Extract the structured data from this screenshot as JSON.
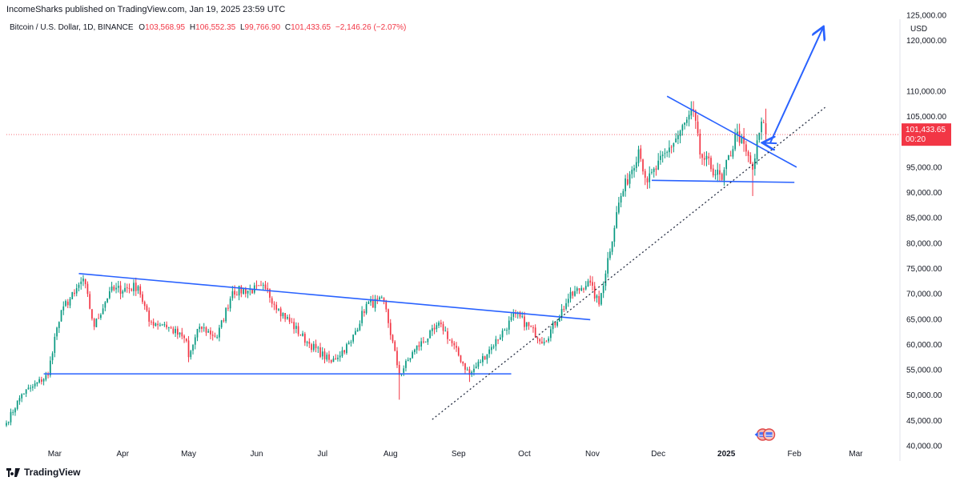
{
  "header": {
    "publisher": "IncomeSharks published on TradingView.com, Jan 19, 2025 23:59 UTC",
    "symbol": "Bitcoin / U.S. Dollar, 1D, BINANCE",
    "o_label": "O",
    "o_value": "103,568.95",
    "h_label": "H",
    "h_value": "106,552.35",
    "l_label": "L",
    "l_value": "99,766.90",
    "c_label": "C",
    "c_value": "101,433.65",
    "change": "−2,146.26 (−2.07%)"
  },
  "price_axis": {
    "currency": "USD",
    "ticks": [
      {
        "value": 125000,
        "label": "125,000.00"
      },
      {
        "value": 120000,
        "label": "120,000.00"
      },
      {
        "value": 110000,
        "label": "110,000.00"
      },
      {
        "value": 105000,
        "label": "105,000.00"
      },
      {
        "value": 95000,
        "label": "95,000.00"
      },
      {
        "value": 90000,
        "label": "90,000.00"
      },
      {
        "value": 85000,
        "label": "85,000.00"
      },
      {
        "value": 80000,
        "label": "80,000.00"
      },
      {
        "value": 75000,
        "label": "75,000.00"
      },
      {
        "value": 70000,
        "label": "70,000.00"
      },
      {
        "value": 65000,
        "label": "65,000.00"
      },
      {
        "value": 60000,
        "label": "60,000.00"
      },
      {
        "value": 55000,
        "label": "55,000.00"
      },
      {
        "value": 50000,
        "label": "50,000.00"
      },
      {
        "value": 45000,
        "label": "45,000.00"
      },
      {
        "value": 40000,
        "label": "40,000.00"
      }
    ],
    "current_price_label": "101,433.65",
    "countdown": "00:20",
    "current_price": 101433.65
  },
  "time_axis": {
    "ticks": [
      {
        "date": "2024-03-01",
        "label": "Mar"
      },
      {
        "date": "2024-04-01",
        "label": "Apr"
      },
      {
        "date": "2024-05-01",
        "label": "May"
      },
      {
        "date": "2024-06-01",
        "label": "Jun"
      },
      {
        "date": "2024-07-01",
        "label": "Jul"
      },
      {
        "date": "2024-08-01",
        "label": "Aug"
      },
      {
        "date": "2024-09-01",
        "label": "Sep"
      },
      {
        "date": "2024-10-01",
        "label": "Oct"
      },
      {
        "date": "2024-11-01",
        "label": "Nov"
      },
      {
        "date": "2024-12-01",
        "label": "Dec"
      },
      {
        "date": "2025-01-01",
        "label": "2025"
      },
      {
        "date": "2025-02-01",
        "label": "Feb"
      },
      {
        "date": "2025-03-01",
        "label": "Mar"
      }
    ]
  },
  "chart_data": {
    "type": "candlestick",
    "title": "",
    "x_range": [
      "2024-02-08",
      "2025-03-20"
    ],
    "y_range": [
      37000,
      128000
    ],
    "grid": false,
    "colors": {
      "up": "#089981",
      "down": "#f23645",
      "drawing": "#2962ff",
      "price_line": "#f23645"
    },
    "anchors": [
      {
        "date": "2024-02-08",
        "price": 44500
      },
      {
        "date": "2024-02-15",
        "price": 50200
      },
      {
        "date": "2024-02-20",
        "price": 51700
      },
      {
        "date": "2024-02-27",
        "price": 54000
      },
      {
        "date": "2024-03-01",
        "price": 61500
      },
      {
        "date": "2024-03-05",
        "price": 67500
      },
      {
        "date": "2024-03-10",
        "price": 70000
      },
      {
        "date": "2024-03-14",
        "price": 73000
      },
      {
        "date": "2024-03-19",
        "price": 63500
      },
      {
        "date": "2024-03-26",
        "price": 70500
      },
      {
        "date": "2024-04-08",
        "price": 71500
      },
      {
        "date": "2024-04-13",
        "price": 64500
      },
      {
        "date": "2024-04-20",
        "price": 64000
      },
      {
        "date": "2024-04-30",
        "price": 60700
      },
      {
        "date": "2024-05-01",
        "price": 57500
      },
      {
        "date": "2024-05-06",
        "price": 63500
      },
      {
        "date": "2024-05-14",
        "price": 61500
      },
      {
        "date": "2024-05-21",
        "price": 70500
      },
      {
        "date": "2024-06-05",
        "price": 71000
      },
      {
        "date": "2024-06-11",
        "price": 67000
      },
      {
        "date": "2024-06-24",
        "price": 60500
      },
      {
        "date": "2024-07-05",
        "price": 56500
      },
      {
        "date": "2024-07-14",
        "price": 60500
      },
      {
        "date": "2024-07-21",
        "price": 68000
      },
      {
        "date": "2024-07-29",
        "price": 68500
      },
      {
        "date": "2024-08-05",
        "price": 54000
      },
      {
        "date": "2024-08-12",
        "price": 59000
      },
      {
        "date": "2024-08-24",
        "price": 64000
      },
      {
        "date": "2024-09-06",
        "price": 54000
      },
      {
        "date": "2024-09-16",
        "price": 59500
      },
      {
        "date": "2024-09-27",
        "price": 66000
      },
      {
        "date": "2024-10-10",
        "price": 60500
      },
      {
        "date": "2024-10-21",
        "price": 69000
      },
      {
        "date": "2024-10-30",
        "price": 72500
      },
      {
        "date": "2024-11-04",
        "price": 67900
      },
      {
        "date": "2024-11-13",
        "price": 88000
      },
      {
        "date": "2024-11-22",
        "price": 98500
      },
      {
        "date": "2024-11-26",
        "price": 92000
      },
      {
        "date": "2024-12-05",
        "price": 98000
      },
      {
        "date": "2024-12-17",
        "price": 106000
      },
      {
        "date": "2024-12-20",
        "price": 97500
      },
      {
        "date": "2024-12-30",
        "price": 92500
      },
      {
        "date": "2025-01-06",
        "price": 102000
      },
      {
        "date": "2025-01-13",
        "price": 94500
      },
      {
        "date": "2025-01-17",
        "price": 104000
      },
      {
        "date": "2025-01-19",
        "price": 101433.65
      }
    ],
    "lows": [
      {
        "date": "2024-05-01",
        "price": 56500
      },
      {
        "date": "2024-08-05",
        "price": 49100
      },
      {
        "date": "2024-09-06",
        "price": 52600
      },
      {
        "date": "2025-01-13",
        "price": 89300
      }
    ],
    "drawings": [
      {
        "type": "trendline",
        "from": {
          "date": "2024-03-12",
          "price": 74000
        },
        "to": {
          "date": "2024-10-31",
          "price": 64900
        }
      },
      {
        "type": "horizontal",
        "from": {
          "date": "2024-02-25",
          "price": 54200
        },
        "to": {
          "date": "2024-09-25",
          "price": 54200
        }
      },
      {
        "type": "trendline",
        "from": {
          "date": "2024-12-05",
          "price": 109000
        },
        "to": {
          "date": "2025-02-02",
          "price": 95000
        }
      },
      {
        "type": "horizontal",
        "from": {
          "date": "2024-11-28",
          "price": 92400
        },
        "to": {
          "date": "2025-02-01",
          "price": 92000
        }
      },
      {
        "type": "dotted_trendline",
        "from": {
          "date": "2024-08-20",
          "price": 45200
        },
        "to": {
          "date": "2025-02-15",
          "price": 106800
        }
      },
      {
        "type": "arrow",
        "from": {
          "date": "2025-01-21",
          "price": 99800
        },
        "to": {
          "date": "2025-02-14",
          "price": 122500
        }
      },
      {
        "type": "arrow",
        "from": {
          "date": "2025-01-24",
          "price": 99700
        },
        "to": {
          "date": "2025-01-18",
          "price": 99800
        }
      }
    ],
    "markers": [
      {
        "type": "event-flags",
        "date": "2025-01-19"
      }
    ]
  },
  "branding": {
    "name": "TradingView"
  }
}
